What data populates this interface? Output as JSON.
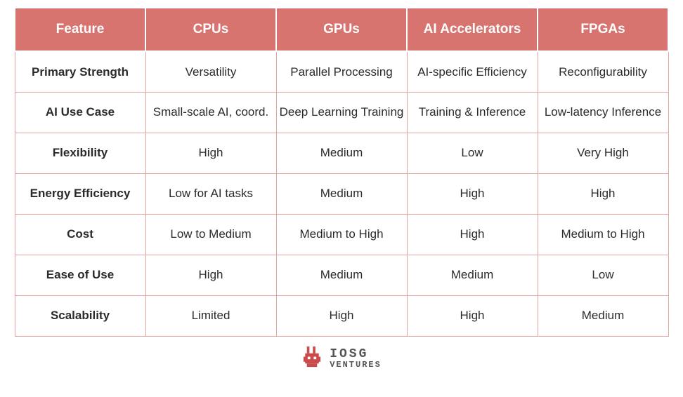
{
  "colors": {
    "header_bg": "#d77470",
    "header_text": "#ffffff",
    "header_border": "#ffffff",
    "cell_border": "#e6a4a1",
    "cell_text": "#2b2b2b",
    "logo_primary": "#c94b4b",
    "logo_text": "#555555"
  },
  "table": {
    "columns": [
      "Feature",
      "CPUs",
      "GPUs",
      "AI Accelerators",
      "FPGAs"
    ],
    "col_widths_pct": [
      20,
      20,
      20,
      20,
      20
    ],
    "rows": [
      [
        "Primary Strength",
        "Versatility",
        "Parallel Processing",
        "AI-specific Efficiency",
        "Reconfigurability"
      ],
      [
        "AI Use Case",
        "Small-scale AI, coord.",
        "Deep Learning Training",
        "Training & Inference",
        "Low-latency Inference"
      ],
      [
        "Flexibility",
        "High",
        "Medium",
        "Low",
        "Very High"
      ],
      [
        "Energy Efficiency",
        "Low for AI tasks",
        "Medium",
        "High",
        "High"
      ],
      [
        "Cost",
        "Low to Medium",
        "Medium to High",
        "High",
        "Medium to High"
      ],
      [
        "Ease of Use",
        "High",
        "Medium",
        "Medium",
        "Low"
      ],
      [
        "Scalability",
        "Limited",
        "High",
        "High",
        "Medium"
      ]
    ]
  },
  "logo": {
    "line1": "IOSG",
    "line2": "VENTURES"
  }
}
